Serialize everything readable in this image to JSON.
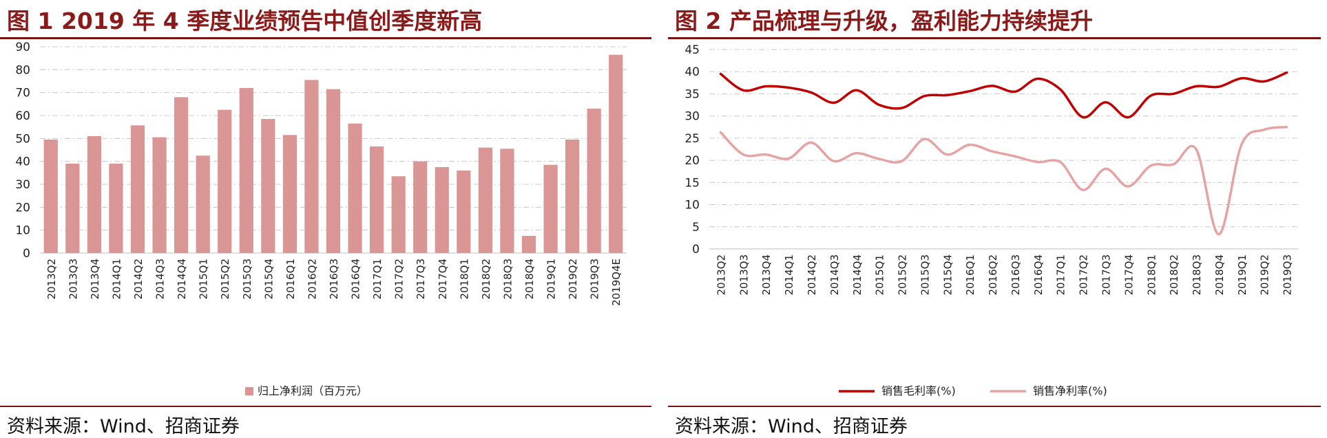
{
  "left_panel": {
    "title": "图 1 2019 年 4 季度业绩预告中值创季度新高",
    "source": "资料来源：Wind、招商证券"
  },
  "right_panel": {
    "title": "图 2  产品梳理与升级，盈利能力持续提升",
    "source": "资料来源：Wind、招商证券"
  },
  "colors": {
    "title": "#8b1a1a",
    "rule": "#7a1212",
    "bar": "#d99694",
    "gross_margin": "#c00000",
    "net_margin": "#e6a3a3"
  },
  "chart_data": [
    {
      "type": "bar",
      "title": "图 1 2019 年 4 季度业绩预告中值创季度新高",
      "categories": [
        "2013Q2",
        "2013Q3",
        "2013Q4",
        "2014Q1",
        "2014Q2",
        "2014Q3",
        "2014Q4",
        "2015Q1",
        "2015Q2",
        "2015Q3",
        "2015Q4",
        "2016Q1",
        "2016Q2",
        "2016Q3",
        "2016Q4",
        "2017Q1",
        "2017Q2",
        "2017Q3",
        "2017Q4",
        "2018Q1",
        "2018Q2",
        "2018Q3",
        "2018Q4",
        "2019Q1",
        "2019Q2",
        "2019Q3",
        "2019Q4E"
      ],
      "series": [
        {
          "name": "归上净利润（百万元）",
          "values": [
            49.5,
            39,
            51,
            39,
            55.7,
            50.5,
            68,
            42.5,
            62.5,
            72,
            58.5,
            51.5,
            75.5,
            71.5,
            56.5,
            46.5,
            33.5,
            40,
            37.5,
            36,
            46,
            45.5,
            7.5,
            38.5,
            49.5,
            63,
            86.5
          ]
        }
      ],
      "ylim": [
        0,
        90
      ],
      "yticks": [
        0,
        10,
        20,
        30,
        40,
        50,
        60,
        70,
        80,
        90
      ],
      "grid": true,
      "legend": "bottom"
    },
    {
      "type": "line",
      "title": "图 2  产品梳理与升级，盈利能力持续提升",
      "categories": [
        "2013Q2",
        "2013Q3",
        "2013Q4",
        "2014Q1",
        "2014Q2",
        "2014Q3",
        "2014Q4",
        "2015Q1",
        "2015Q2",
        "2015Q3",
        "2015Q4",
        "2016Q1",
        "2016Q2",
        "2016Q3",
        "2016Q4",
        "2017Q1",
        "2017Q2",
        "2017Q3",
        "2017Q4",
        "2018Q1",
        "2018Q2",
        "2018Q3",
        "2018Q4",
        "2019Q1",
        "2019Q2",
        "2019Q3"
      ],
      "series": [
        {
          "name": "销售毛利率(%)",
          "values": [
            39.5,
            35.8,
            36.7,
            36.4,
            35.3,
            33,
            35.8,
            32.5,
            31.8,
            34.5,
            34.7,
            35.6,
            36.8,
            35.5,
            38.4,
            36,
            29.7,
            33.1,
            29.7,
            34.6,
            35,
            36.7,
            36.6,
            38.5,
            37.8,
            39.8
          ]
        },
        {
          "name": "销售净利率(%)",
          "values": [
            26.3,
            21.3,
            21.3,
            20.4,
            24,
            19.8,
            21.6,
            20.3,
            19.8,
            24.8,
            21.3,
            23.5,
            22,
            20.9,
            19.6,
            19.6,
            13.3,
            18.1,
            14.1,
            18.8,
            19.1,
            22.5,
            3.3,
            23.5,
            26.9,
            27.5
          ]
        }
      ],
      "ylim": [
        0,
        45
      ],
      "yticks": [
        0,
        5,
        10,
        15,
        20,
        25,
        30,
        35,
        40,
        45
      ],
      "grid": true,
      "legend": "bottom"
    }
  ]
}
